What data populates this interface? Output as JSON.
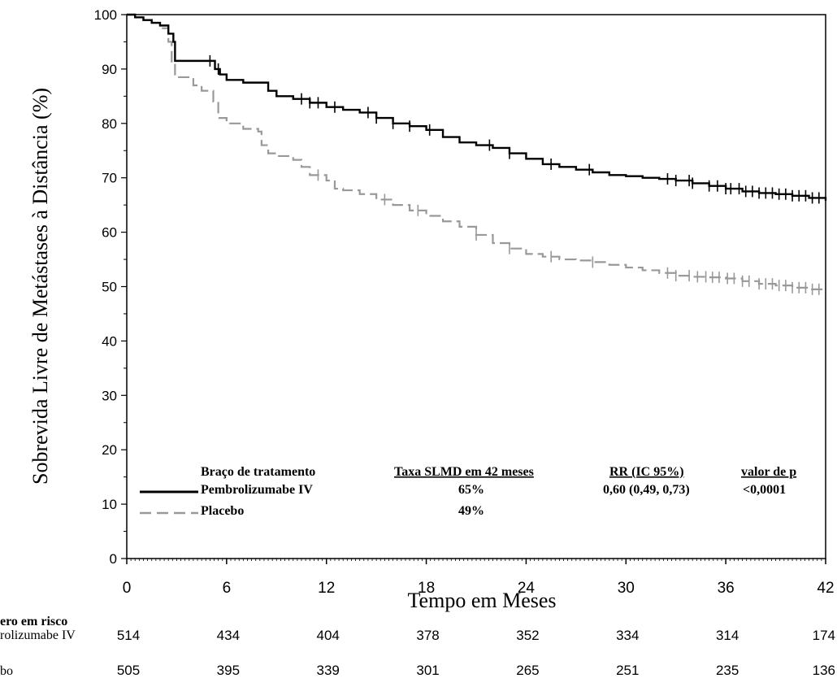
{
  "chart_data": {
    "type": "line",
    "title": "",
    "xlabel": "Tempo em Meses",
    "ylabel": "Sobrevida Livre de Metástases à Distância (%)",
    "xlim": [
      0,
      42
    ],
    "ylim": [
      0,
      100
    ],
    "x_ticks": [
      "0",
      "6",
      "12",
      "18",
      "24",
      "30",
      "36",
      "42"
    ],
    "y_ticks": [
      "0",
      "10",
      "20",
      "30",
      "40",
      "50",
      "60",
      "70",
      "80",
      "90",
      "100"
    ],
    "grid": false,
    "legend": {
      "placement": "bottom-left",
      "headers": [
        "Braço de tratamento",
        "Taxa SLMD em 42 meses",
        "RR (IC 95%)",
        "valor de p"
      ],
      "rows": [
        {
          "arm": "Pembrolizumabe IV",
          "rate": "65%",
          "hr": "0,60 (0,49, 0,73)",
          "p": "<0,0001"
        },
        {
          "arm": "Placebo",
          "rate": "49%",
          "hr": "",
          "p": ""
        }
      ]
    },
    "series": [
      {
        "name": "Pembrolizumabe IV",
        "color": "#000000",
        "style": "solid",
        "points": [
          [
            0,
            100
          ],
          [
            0.5,
            99.5
          ],
          [
            1,
            99
          ],
          [
            1.5,
            98.5
          ],
          [
            2,
            98
          ],
          [
            2.5,
            96.5
          ],
          [
            2.8,
            95
          ],
          [
            2.9,
            91.5
          ],
          [
            4,
            91.5
          ],
          [
            5,
            91.5
          ],
          [
            5.3,
            90
          ],
          [
            5.6,
            89
          ],
          [
            6,
            88
          ],
          [
            7,
            87.5
          ],
          [
            8,
            87.5
          ],
          [
            8.5,
            86
          ],
          [
            9,
            85
          ],
          [
            10,
            84.5
          ],
          [
            11,
            83.8
          ],
          [
            12,
            83
          ],
          [
            13,
            82.5
          ],
          [
            14,
            82
          ],
          [
            15,
            81
          ],
          [
            16,
            80
          ],
          [
            17,
            79.5
          ],
          [
            18,
            78.8
          ],
          [
            19,
            77.5
          ],
          [
            20,
            76.5
          ],
          [
            21,
            76
          ],
          [
            22,
            75.5
          ],
          [
            23,
            74.5
          ],
          [
            24,
            73.5
          ],
          [
            25,
            72.5
          ],
          [
            26,
            72
          ],
          [
            27,
            71.5
          ],
          [
            28,
            71
          ],
          [
            29,
            70.5
          ],
          [
            30,
            70.3
          ],
          [
            31,
            70
          ],
          [
            32,
            69.8
          ],
          [
            33,
            69.5
          ],
          [
            34,
            69
          ],
          [
            35,
            68.5
          ],
          [
            36,
            68
          ],
          [
            37,
            67.5
          ],
          [
            38,
            67.2
          ],
          [
            39,
            67
          ],
          [
            40,
            66.7
          ],
          [
            41,
            66.3
          ],
          [
            42,
            65.8
          ]
        ],
        "censor_marks": [
          5,
          5.5,
          10.5,
          11,
          11.5,
          12.5,
          14.5,
          15,
          16,
          17,
          18.2,
          21.8,
          23,
          25.5,
          27.8,
          32.5,
          33,
          33.8,
          34,
          35,
          35.5,
          36,
          36.3,
          36.8,
          37.2,
          37.6,
          38,
          38.4,
          38.8,
          39.2,
          39.6,
          40,
          40.4,
          40.8,
          41.2,
          41.6
        ]
      },
      {
        "name": "Placebo",
        "color": "#999999",
        "style": "dashed",
        "points": [
          [
            0,
            100
          ],
          [
            0.5,
            99.5
          ],
          [
            1,
            99
          ],
          [
            1.5,
            98.5
          ],
          [
            2,
            97.5
          ],
          [
            2.5,
            95
          ],
          [
            2.7,
            91
          ],
          [
            2.9,
            88.5
          ],
          [
            4,
            87
          ],
          [
            4.5,
            86
          ],
          [
            5.2,
            84
          ],
          [
            5.5,
            81
          ],
          [
            6,
            80
          ],
          [
            7,
            79
          ],
          [
            7.9,
            78.5
          ],
          [
            8.1,
            76
          ],
          [
            8.5,
            74.5
          ],
          [
            9,
            74
          ],
          [
            10,
            73.3
          ],
          [
            10.5,
            72
          ],
          [
            11,
            70.5
          ],
          [
            12,
            69.5
          ],
          [
            12.5,
            68
          ],
          [
            13,
            67.7
          ],
          [
            14,
            67
          ],
          [
            15,
            66
          ],
          [
            16,
            65
          ],
          [
            17,
            64
          ],
          [
            18,
            63
          ],
          [
            19,
            62
          ],
          [
            20,
            61
          ],
          [
            21,
            59.5
          ],
          [
            22,
            58
          ],
          [
            23,
            57
          ],
          [
            24,
            56
          ],
          [
            25,
            55.5
          ],
          [
            26,
            55
          ],
          [
            27,
            54.8
          ],
          [
            28,
            54.5
          ],
          [
            29,
            54
          ],
          [
            30,
            53.5
          ],
          [
            31,
            53
          ],
          [
            32,
            52.5
          ],
          [
            33,
            52
          ],
          [
            34,
            51.8
          ],
          [
            35,
            51.7
          ],
          [
            36,
            51.5
          ],
          [
            37,
            51
          ],
          [
            38,
            50.5
          ],
          [
            39,
            50.2
          ],
          [
            40,
            49.8
          ],
          [
            41,
            49.5
          ],
          [
            42,
            49.2
          ]
        ],
        "censor_marks": [
          11.5,
          15.5,
          17.5,
          21,
          23,
          25.5,
          28,
          32.5,
          33,
          33.8,
          34.3,
          34.8,
          35.2,
          35.6,
          36.1,
          36.5,
          37,
          37.4,
          38,
          38.4,
          38.8,
          39.2,
          39.6,
          40,
          40.4,
          40.8,
          41.2,
          41.6
        ]
      }
    ],
    "risk_table": {
      "title": "ero em risco",
      "x": [
        0,
        6,
        12,
        18,
        24,
        30,
        36,
        42
      ],
      "rows": [
        {
          "label": "rolizumabe IV",
          "values": [
            "514",
            "434",
            "404",
            "378",
            "352",
            "334",
            "314",
            "174"
          ]
        },
        {
          "label": "bo",
          "values": [
            "505",
            "395",
            "339",
            "301",
            "265",
            "251",
            "235",
            "136"
          ]
        }
      ]
    }
  }
}
